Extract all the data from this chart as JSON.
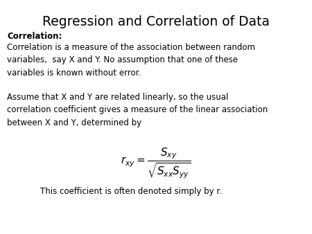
{
  "title": "Regression and Correlation of Data",
  "title_fontsize": 13.5,
  "title_color": "#000000",
  "background_color": "#ffffff",
  "bold_label": "Correlation:",
  "para1": "Correlation is a measure of the association between random\nvariables,  say X and Y. No assumption that one of these\nvariables is known without error.",
  "para2": "Assume that X and Y are related linearly, so the usual\ncorrelation coefficient gives a measure of the linear association\nbetween X and Y, determined by",
  "para3": "This coefficient is often denoted simply by r.",
  "text_fontsize": 8.5,
  "bold_fontsize": 8.5,
  "formula_fontsize": 11
}
